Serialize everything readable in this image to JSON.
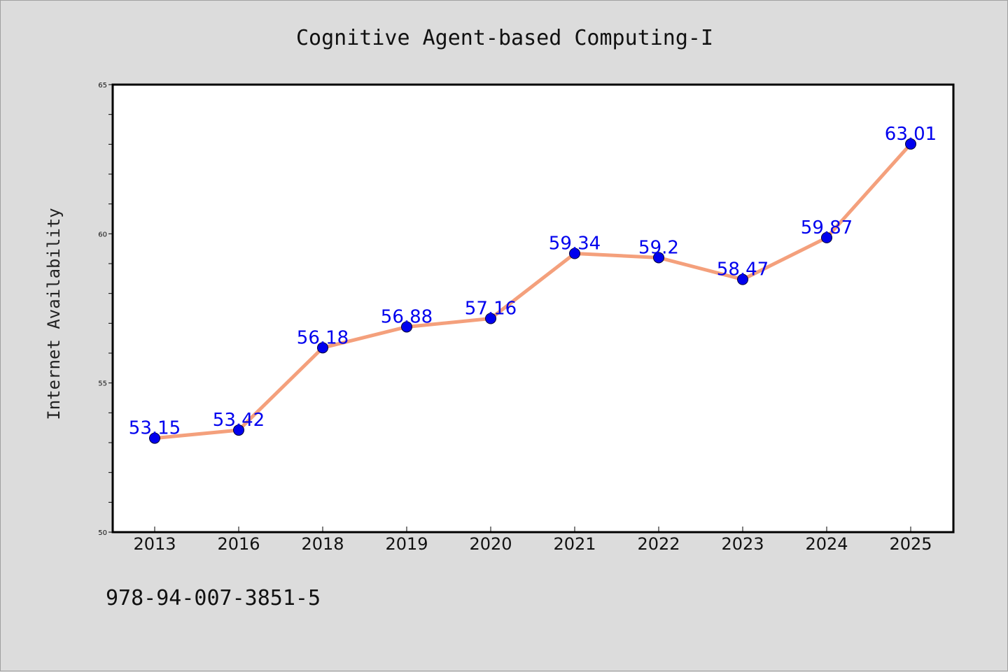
{
  "colors": {
    "background": "#dcdcdc",
    "plot_background": "#ffffff",
    "line": "#f4a07c",
    "marker": "#0000ee",
    "data_label": "#0000ee"
  },
  "footer": {
    "text": "978-94-007-3851-5"
  },
  "chart_data": {
    "type": "line",
    "title": "Cognitive Agent-based Computing-I",
    "xlabel": "",
    "ylabel": "Internet Availability",
    "categories": [
      "2013",
      "2016",
      "2018",
      "2019",
      "2020",
      "2021",
      "2022",
      "2023",
      "2024",
      "2025"
    ],
    "series": [
      {
        "values": [
          53.15,
          53.42,
          56.18,
          56.88,
          57.16,
          59.34,
          59.2,
          58.47,
          59.87,
          63.01
        ]
      }
    ],
    "data_labels": [
      "53.15",
      "53.42",
      "56.18",
      "56.88",
      "57.16",
      "59.34",
      "59.2",
      "58.47",
      "59.87",
      "63.01"
    ],
    "ylim": [
      50,
      65
    ],
    "yticks": [
      "50",
      "55",
      "60",
      "65"
    ],
    "grid": false,
    "legend": "none"
  }
}
